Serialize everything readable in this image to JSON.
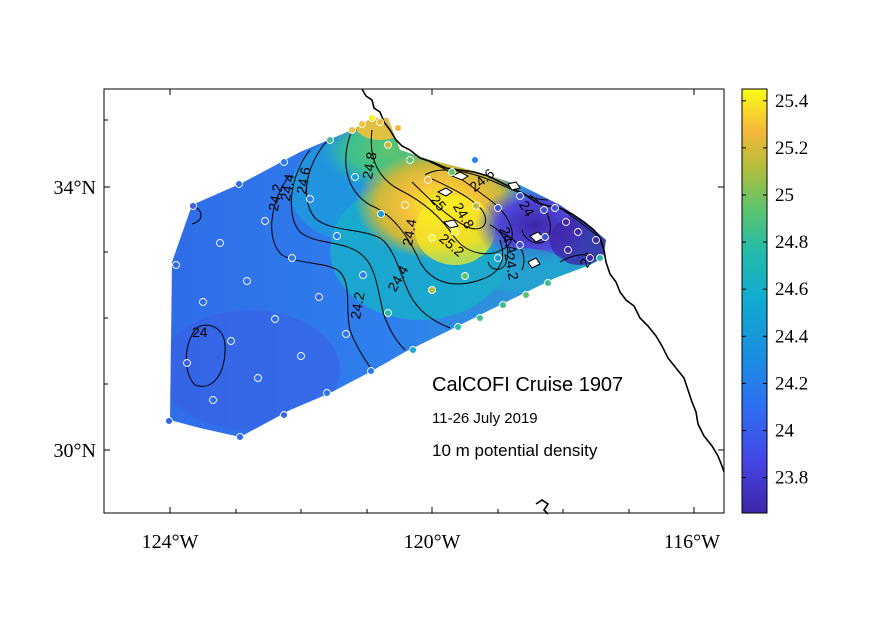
{
  "map": {
    "title": "CalCOFI Cruise 1907",
    "date_range": "11-26 July 2019",
    "variable": "10 m potential density",
    "lat_ticks": [
      {
        "label": "34°N",
        "lat": 34
      },
      {
        "label": "30°N",
        "lat": 30
      }
    ],
    "lon_ticks": [
      {
        "label": "124°W",
        "lon": -124
      },
      {
        "label": "120°W",
        "lon": -120
      },
      {
        "label": "116°W",
        "lon": -116
      }
    ],
    "lon_range": [
      -125.0,
      -115.5
    ],
    "lat_range": [
      29.0,
      35.5
    ]
  },
  "colorbar": {
    "colormap": "parula",
    "range": [
      23.65,
      25.45
    ],
    "ticks": [
      "25.4",
      "25.2",
      "25",
      "24.8",
      "24.6",
      "24.4",
      "24.2",
      "24",
      "23.8"
    ]
  },
  "contour_labels": [
    "24",
    "24.2",
    "24.4",
    "24.6",
    "24.8",
    "25",
    "25.2"
  ],
  "stations": {
    "count": 64,
    "marker": "small circle, white edge"
  },
  "colors": {
    "low": "#3e26a8",
    "mid": "#1ea8d6",
    "high": "#f9fb15",
    "coastline": "#000000"
  }
}
